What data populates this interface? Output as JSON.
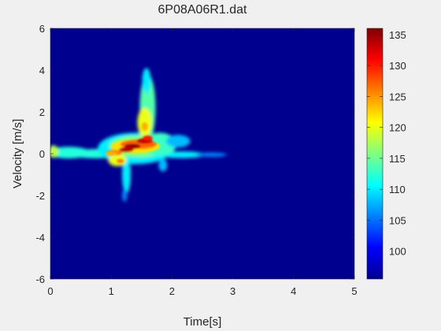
{
  "chart_data": {
    "type": "heatmap",
    "title": "6P08A06R1.dat",
    "xlabel": "Time[s]",
    "ylabel": "Velocity [m/s]",
    "xlim": [
      0,
      5
    ],
    "ylim": [
      -6,
      6
    ],
    "xticks": [
      "0",
      "1",
      "2",
      "3",
      "4",
      "5"
    ],
    "yticks": [
      "6",
      "4",
      "2",
      "0",
      "-2",
      "-4",
      "-6"
    ],
    "colormap": "jet",
    "background_value": 96,
    "colorbar": {
      "range": [
        95.5,
        136
      ],
      "ticks": [
        "135",
        "130",
        "125",
        "120",
        "115",
        "110",
        "105",
        "100"
      ]
    },
    "features": [
      {
        "kind": "core",
        "t": 1.35,
        "v": 0.35,
        "value": 135
      },
      {
        "kind": "core",
        "t": 1.55,
        "v": 0.6,
        "value": 133
      },
      {
        "kind": "core",
        "t": 1.05,
        "v": 0.05,
        "value": 126
      },
      {
        "kind": "upper-spike",
        "t": 1.58,
        "v_range": [
          0.5,
          4.0
        ],
        "value": 114
      },
      {
        "kind": "lower-spike",
        "t": 1.25,
        "v_range": [
          -2.3,
          -0.2
        ],
        "value": 110
      },
      {
        "kind": "zero-band",
        "t_range": [
          0,
          2.8
        ],
        "v": 0,
        "value": 112
      }
    ]
  },
  "colors": {
    "figure_background": "#f0f0f0",
    "axes_background": "#00008f",
    "text": "#262626"
  }
}
